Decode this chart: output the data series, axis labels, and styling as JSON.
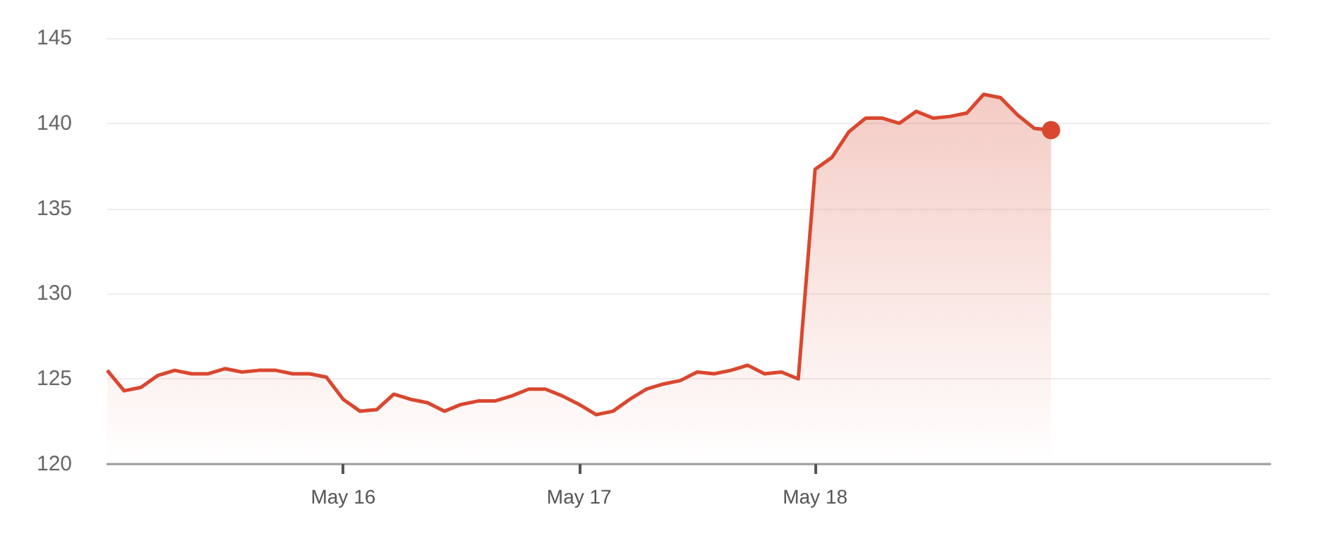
{
  "chart_data": {
    "type": "area",
    "categories": [
      null,
      null,
      null,
      null,
      null,
      null,
      null,
      null,
      null,
      null,
      null,
      null,
      null,
      null,
      "May 16",
      null,
      null,
      null,
      null,
      null,
      null,
      null,
      null,
      null,
      null,
      null,
      null,
      null,
      "May 17",
      null,
      null,
      null,
      null,
      null,
      null,
      null,
      null,
      null,
      null,
      null,
      null,
      null,
      "May 18",
      null,
      null,
      null,
      null,
      null,
      null,
      null,
      null,
      null,
      null,
      null,
      null,
      null,
      null,
      null,
      null,
      null,
      null,
      null,
      null,
      null,
      null,
      null,
      null,
      null,
      null,
      null
    ],
    "series": [
      {
        "color": "#d9472f",
        "values": [
          125.5,
          124.3,
          124.5,
          125.2,
          125.5,
          125.3,
          125.3,
          125.6,
          125.4,
          125.5,
          125.5,
          125.3,
          125.3,
          125.1,
          123.8,
          123.1,
          123.2,
          124.1,
          123.8,
          123.6,
          123.1,
          123.5,
          123.7,
          123.7,
          124.0,
          124.4,
          124.4,
          124.0,
          123.5,
          122.9,
          123.1,
          123.8,
          124.4,
          124.7,
          124.9,
          125.4,
          125.3,
          125.5,
          125.8,
          125.3,
          125.4,
          125.0,
          137.3,
          138.0,
          139.5,
          140.3,
          140.3,
          140.0,
          140.7,
          140.3,
          140.4,
          140.6,
          141.7,
          141.5,
          140.5,
          139.7,
          139.6,
          null,
          null,
          null,
          null,
          null,
          null,
          null,
          null,
          null,
          null,
          null,
          null,
          null
        ]
      }
    ],
    "ylim": [
      120,
      145
    ],
    "yticks": [
      120,
      125,
      130,
      135,
      140,
      145
    ],
    "grid": "y"
  }
}
